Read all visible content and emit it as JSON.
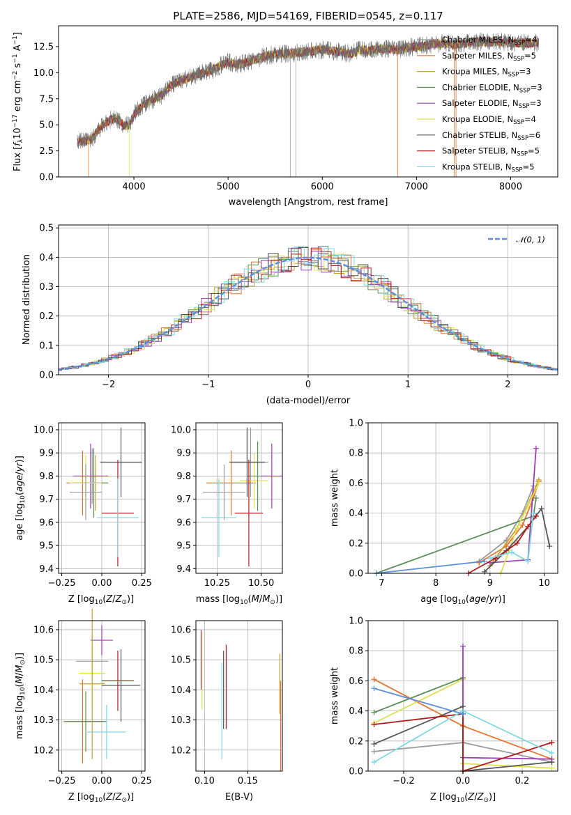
{
  "figure": {
    "title": "PLATE=2586, MJD=54169, FIBERID=0545, z=0.117",
    "models": [
      {
        "name": "Chabrier MILES",
        "nssp": "4",
        "color": "#9a9a9a"
      },
      {
        "name": "Salpeter MILES",
        "nssp": "5",
        "color": "#e8732a"
      },
      {
        "name": "Kroupa MILES",
        "nssp": "3",
        "color": "#c8a030"
      },
      {
        "name": "Chabrier ELODIE",
        "nssp": "3",
        "color": "#5a8f5a"
      },
      {
        "name": "Salpeter ELODIE",
        "nssp": "3",
        "color": "#9a3db5"
      },
      {
        "name": "Kroupa ELODIE",
        "nssp": "4",
        "color": "#dfe050"
      },
      {
        "name": "Chabrier STELIB",
        "nssp": "6",
        "color": "#555555"
      },
      {
        "name": "Salpeter STELIB",
        "nssp": "5",
        "color": "#b01c1c"
      },
      {
        "name": "Kroupa STELIB",
        "nssp": "5",
        "color": "#7fd8e0"
      }
    ]
  },
  "chart_data": [
    {
      "id": "spectrum",
      "type": "line",
      "title": "PLATE=2586, MJD=54169, FIBERID=0545, z=0.117",
      "xlabel": "wavelength [Angstrom, rest frame]",
      "xlim": [
        3200,
        8500
      ],
      "ylim": [
        0,
        14.5
      ],
      "xticks": [
        4000,
        5000,
        6000,
        7000,
        8000
      ],
      "yticks": [
        0.0,
        2.5,
        5.0,
        7.5,
        10.0,
        12.5
      ],
      "spectrum_points": [
        [
          3400,
          3.3
        ],
        [
          3450,
          3.4
        ],
        [
          3500,
          3.5
        ],
        [
          3550,
          3.6
        ],
        [
          3600,
          4.3
        ],
        [
          3650,
          4.8
        ],
        [
          3700,
          5.2
        ],
        [
          3750,
          5.5
        ],
        [
          3800,
          5.6
        ],
        [
          3850,
          5.4
        ],
        [
          3900,
          4.9
        ],
        [
          3950,
          5.0
        ],
        [
          4000,
          6.0
        ],
        [
          4100,
          6.9
        ],
        [
          4200,
          7.4
        ],
        [
          4300,
          7.9
        ],
        [
          4400,
          8.8
        ],
        [
          4500,
          9.2
        ],
        [
          4600,
          9.6
        ],
        [
          4700,
          9.9
        ],
        [
          4800,
          10.1
        ],
        [
          4900,
          10.6
        ],
        [
          5000,
          11.0
        ],
        [
          5100,
          10.8
        ],
        [
          5200,
          11.0
        ],
        [
          5300,
          11.3
        ],
        [
          5400,
          11.6
        ],
        [
          5500,
          11.8
        ],
        [
          5600,
          11.8
        ],
        [
          5700,
          11.9
        ],
        [
          5800,
          12.0
        ],
        [
          5900,
          12.1
        ],
        [
          6000,
          12.2
        ],
        [
          6100,
          12.1
        ],
        [
          6200,
          12.0
        ],
        [
          6300,
          11.8
        ],
        [
          6400,
          12.2
        ],
        [
          6500,
          12.1
        ],
        [
          6600,
          12.3
        ],
        [
          6700,
          12.3
        ],
        [
          6800,
          12.2
        ],
        [
          6900,
          12.4
        ],
        [
          7000,
          12.5
        ],
        [
          7100,
          12.6
        ],
        [
          7200,
          12.8
        ],
        [
          7300,
          12.8
        ],
        [
          7400,
          12.7
        ],
        [
          7500,
          12.8
        ],
        [
          7600,
          12.9
        ],
        [
          7700,
          13.0
        ],
        [
          7800,
          12.9
        ],
        [
          7900,
          13.0
        ],
        [
          8000,
          12.8
        ],
        [
          8100,
          12.9
        ],
        [
          8200,
          12.8
        ],
        [
          8300,
          12.9
        ]
      ],
      "series": [
        {
          "name": "Chabrier MILES, N_SSP=4"
        },
        {
          "name": "Salpeter MILES, N_SSP=5"
        },
        {
          "name": "Kroupa MILES, N_SSP=3"
        },
        {
          "name": "Chabrier ELODIE, N_SSP=3"
        },
        {
          "name": "Salpeter ELODIE, N_SSP=3"
        },
        {
          "name": "Kroupa ELODIE, N_SSP=4"
        },
        {
          "name": "Chabrier STELIB, N_SSP=6"
        },
        {
          "name": "Salpeter STELIB, N_SSP=5"
        },
        {
          "name": "Kroupa STELIB, N_SSP=5"
        }
      ],
      "legend": "top-right"
    },
    {
      "id": "residuals",
      "type": "line",
      "xlabel": "(data-model)/error",
      "ylabel": "Normed distribution",
      "xlim": [
        -2.5,
        2.5
      ],
      "ylim": [
        0,
        0.51
      ],
      "xticks": [
        -2,
        -1,
        0,
        1,
        2
      ],
      "yticks": [
        0.0,
        0.1,
        0.2,
        0.3,
        0.4,
        0.5
      ],
      "series": [
        {
          "name": "N(0,1)",
          "style": "dashed"
        }
      ],
      "grid": true,
      "legend": "top-right"
    },
    {
      "id": "age-vs-Z",
      "type": "scatter",
      "xlabel": "Z [log10(Z/Zsun)]",
      "ylabel": "age [log10(age/yr)]",
      "xlim": [
        -0.27,
        0.27
      ],
      "ylim": [
        9.38,
        10.03
      ],
      "xticks": [
        -0.25,
        0.0,
        0.25
      ],
      "yticks": [
        9.4,
        9.5,
        9.6,
        9.7,
        9.8,
        9.9,
        10.0
      ],
      "points": [
        {
          "model": "Chabrier MILES",
          "x": -0.06,
          "xerr": 0.1,
          "y": 9.8,
          "yerr": 0.12
        },
        {
          "model": "Salpeter MILES",
          "x": -0.12,
          "xerr": 0.1,
          "y": 9.77,
          "yerr": 0.14
        },
        {
          "model": "Kroupa MILES",
          "x": -0.04,
          "xerr": 0.08,
          "y": 9.77,
          "yerr": 0.12
        },
        {
          "model": "Chabrier ELODIE",
          "x": -0.05,
          "xerr": 0.09,
          "y": 9.77,
          "yerr": 0.15
        },
        {
          "model": "Salpeter ELODIE",
          "x": -0.07,
          "xerr": 0.11,
          "y": 9.8,
          "yerr": 0.14
        },
        {
          "model": "Kroupa ELODIE",
          "x": -0.1,
          "xerr": 0.1,
          "y": 9.77,
          "yerr": 0.12
        },
        {
          "model": "Chabrier STELIB",
          "x": 0.12,
          "xerr": 0.13,
          "y": 9.86,
          "yerr": 0.15
        },
        {
          "model": "Salpeter STELIB",
          "x": 0.1,
          "xerr": 0.1,
          "y": 9.64,
          "yerr": 0.23
        },
        {
          "model": "Kroupa STELIB",
          "x": 0.1,
          "xerr": 0.13,
          "y": 9.62,
          "yerr": 0.17
        },
        {
          "model": "Chabrier MILES",
          "x": -0.1,
          "xerr": 0.1,
          "y": 9.73,
          "yerr": 0.12
        }
      ]
    },
    {
      "id": "age-vs-mass",
      "type": "scatter",
      "xlabel": "mass [log10(M/Msun)]",
      "xlim": [
        10.13,
        10.62
      ],
      "ylim": [
        9.38,
        10.03
      ],
      "xticks": [
        10.25,
        10.5
      ],
      "yticks": [
        9.4,
        9.5,
        9.6,
        9.7,
        9.8,
        9.9,
        10.0
      ],
      "points": [
        {
          "model": "Chabrier MILES",
          "x": 10.44,
          "xerr": 0.1,
          "y": 9.86,
          "yerr": 0.15
        },
        {
          "model": "Salpeter MILES",
          "x": 10.33,
          "xerr": 0.14,
          "y": 9.77,
          "yerr": 0.14
        },
        {
          "model": "Kroupa ELODIE",
          "x": 10.46,
          "xerr": 0.08,
          "y": 9.78,
          "yerr": 0.12
        },
        {
          "model": "Chabrier ELODIE",
          "x": 10.48,
          "xerr": 0.06,
          "y": 9.8,
          "yerr": 0.15
        },
        {
          "model": "Salpeter ELODIE",
          "x": 10.56,
          "xerr": 0.06,
          "y": 9.8,
          "yerr": 0.14
        },
        {
          "model": "Chabrier STELIB",
          "x": 10.42,
          "xerr": 0.1,
          "y": 9.86,
          "yerr": 0.15
        },
        {
          "model": "Salpeter STELIB",
          "x": 10.43,
          "xerr": 0.08,
          "y": 9.64,
          "yerr": 0.23
        },
        {
          "model": "Kroupa STELIB",
          "x": 10.26,
          "xerr": 0.1,
          "y": 9.62,
          "yerr": 0.17
        },
        {
          "model": "Chabrier MILES",
          "x": 10.29,
          "xerr": 0.12,
          "y": 9.73,
          "yerr": 0.12
        }
      ]
    },
    {
      "id": "weight-vs-age",
      "type": "line",
      "xlabel": "age [log10(age/yr)]",
      "ylabel": "mass weight",
      "xlim": [
        6.75,
        10.25
      ],
      "ylim": [
        0,
        1.0
      ],
      "xticks": [
        7,
        8,
        9,
        10
      ],
      "yticks": [
        0.0,
        0.2,
        0.4,
        0.6,
        0.8,
        1.0
      ],
      "series": [
        {
          "model": "Chabrier MILES",
          "x": [
            8.8,
            9.3,
            9.6,
            9.8
          ],
          "y": [
            0.08,
            0.22,
            0.4,
            0.58
          ]
        },
        {
          "model": "Salpeter MILES",
          "x": [
            8.8,
            9.3,
            9.6,
            9.8,
            9.9
          ],
          "y": [
            0.07,
            0.18,
            0.32,
            0.5,
            0.61
          ]
        },
        {
          "model": "Kroupa MILES",
          "x": [
            9.0,
            9.5,
            9.9
          ],
          "y": [
            0.05,
            0.3,
            0.62
          ]
        },
        {
          "model": "Chabrier ELODIE",
          "x": [
            6.9,
            9.8,
            9.85
          ],
          "y": [
            0.0,
            0.38,
            0.5
          ]
        },
        {
          "model": "Salpeter ELODIE",
          "x": [
            9.0,
            9.7,
            9.85
          ],
          "y": [
            0.07,
            0.09,
            0.83
          ]
        },
        {
          "model": "Kroupa ELODIE",
          "x": [
            9.2,
            9.5,
            9.7,
            9.9
          ],
          "y": [
            0.0,
            0.3,
            0.45,
            0.6
          ]
        },
        {
          "model": "Chabrier STELIB",
          "x": [
            8.9,
            9.3,
            9.7,
            9.95,
            10.1
          ],
          "y": [
            0.01,
            0.15,
            0.31,
            0.43,
            0.18
          ]
        },
        {
          "model": "Salpeter STELIB",
          "x": [
            8.6,
            9.1,
            9.5,
            9.7,
            9.85
          ],
          "y": [
            0.0,
            0.1,
            0.2,
            0.31,
            0.38
          ]
        },
        {
          "model": "Kroupa STELIB",
          "x": [
            9.0,
            9.4,
            9.7,
            9.8
          ],
          "y": [
            0.1,
            0.14,
            0.08,
            0.4
          ]
        },
        {
          "model": "blue",
          "x": [
            6.9,
            8.9
          ],
          "y": [
            0.0,
            0.08
          ]
        }
      ]
    },
    {
      "id": "mass-vs-Z",
      "type": "scatter",
      "xlabel": "Z [log10(Z/Zsun)]",
      "ylabel": "mass [log10(M/Msun)]",
      "xlim": [
        -0.27,
        0.27
      ],
      "ylim": [
        10.13,
        10.63
      ],
      "xticks": [
        -0.25,
        0.0,
        0.25
      ],
      "yticks": [
        10.2,
        10.3,
        10.4,
        10.5,
        10.6
      ],
      "points": [
        {
          "model": "Chabrier MILES",
          "x": -0.06,
          "xerr": 0.1,
          "y": 10.495,
          "yerr": 0.05
        },
        {
          "model": "Salpeter MILES",
          "x": -0.12,
          "xerr": 0.12,
          "y": 10.295,
          "yerr": 0.14
        },
        {
          "model": "Kroupa ELODIE",
          "x": -0.06,
          "xerr": 0.08,
          "y": 10.455,
          "yerr": 0.12
        },
        {
          "model": "Chabrier ELODIE",
          "x": -0.1,
          "xerr": 0.13,
          "y": 10.295,
          "yerr": 0.1
        },
        {
          "model": "Salpeter ELODIE",
          "x": 0.0,
          "xerr": 0.07,
          "y": 10.565,
          "yerr": 0.05
        },
        {
          "model": "Chabrier STELIB",
          "x": 0.12,
          "xerr": 0.12,
          "y": 10.415,
          "yerr": 0.12
        },
        {
          "model": "Salpeter STELIB",
          "x": 0.1,
          "xerr": 0.1,
          "y": 10.43,
          "yerr": 0.1
        },
        {
          "model": "Kroupa STELIB",
          "x": 0.03,
          "xerr": 0.12,
          "y": 10.26,
          "yerr": 0.09
        },
        {
          "model": "Kroupa MILES",
          "x": -0.06,
          "xerr": 0.08,
          "y": 10.42,
          "yerr": 0.25
        }
      ]
    },
    {
      "id": "mass-vs-EBV",
      "type": "scatter",
      "xlabel": "E(B-V)",
      "xlim": [
        0.09,
        0.19
      ],
      "ylim": [
        10.13,
        10.63
      ],
      "xticks": [
        0.1,
        0.15
      ],
      "yticks": [
        10.2,
        10.3,
        10.4,
        10.5,
        10.6
      ],
      "points": [
        {
          "model": "Kroupa ELODIE",
          "x": 0.097,
          "y": 10.465,
          "yerr": 0.13
        },
        {
          "model": "Salpeter ELODIE",
          "x": 0.096,
          "y": 10.5,
          "yerr": 0.1
        },
        {
          "model": "Kroupa STELIB",
          "x": 0.12,
          "y": 10.33,
          "yerr": 0.16
        },
        {
          "model": "Chabrier STELIB",
          "x": 0.122,
          "y": 10.4,
          "yerr": 0.13
        },
        {
          "model": "Salpeter STELIB",
          "x": 0.125,
          "y": 10.41,
          "yerr": 0.14
        },
        {
          "model": "Kroupa MILES",
          "x": 0.187,
          "y": 10.42,
          "yerr": 0.1
        },
        {
          "model": "Salpeter MILES",
          "x": 0.188,
          "y": 10.28,
          "yerr": 0.15
        }
      ]
    },
    {
      "id": "weight-vs-Z",
      "type": "line",
      "xlabel": "Z [log10(Z/Zsun)]",
      "ylabel": "mass weight",
      "xlim": [
        -0.32,
        0.32
      ],
      "ylim": [
        0,
        1.0
      ],
      "xticks": [
        -0.2,
        0.0,
        0.2
      ],
      "yticks": [
        0.0,
        0.2,
        0.4,
        0.6,
        0.8,
        1.0
      ],
      "series": [
        {
          "model": "Salpeter MILES",
          "x": [
            -0.3,
            0.0,
            0.3
          ],
          "y": [
            0.61,
            0.3,
            0.08
          ]
        },
        {
          "model": "Chabrier MILES",
          "x": [
            -0.3,
            0.0,
            0.3
          ],
          "y": [
            0.13,
            0.19,
            0.06
          ]
        },
        {
          "model": "Kroupa ELODIE",
          "x": [
            -0.3,
            0.0,
            0.0,
            0.3
          ],
          "y": [
            0.32,
            0.61,
            0.05,
            0.02
          ]
        },
        {
          "model": "Chabrier ELODIE",
          "x": [
            -0.3,
            0.0
          ],
          "y": [
            0.39,
            0.62
          ]
        },
        {
          "model": "Salpeter ELODIE",
          "x": [
            0.0,
            0.0,
            0.3
          ],
          "y": [
            0.83,
            0.09,
            0.08
          ]
        },
        {
          "model": "Chabrier STELIB",
          "x": [
            -0.3,
            0.0,
            0.0,
            0.3
          ],
          "y": [
            0.18,
            0.43,
            0.0,
            0.06
          ]
        },
        {
          "model": "Salpeter STELIB",
          "x": [
            -0.3,
            0.0,
            0.0,
            0.3
          ],
          "y": [
            0.31,
            0.38,
            0.0,
            0.19
          ]
        },
        {
          "model": "Kroupa STELIB",
          "x": [
            -0.3,
            0.0,
            0.3
          ],
          "y": [
            0.06,
            0.4,
            0.12
          ]
        },
        {
          "model": "blue",
          "x": [
            -0.3,
            0.0
          ],
          "y": [
            0.55,
            0.38
          ]
        }
      ]
    }
  ]
}
